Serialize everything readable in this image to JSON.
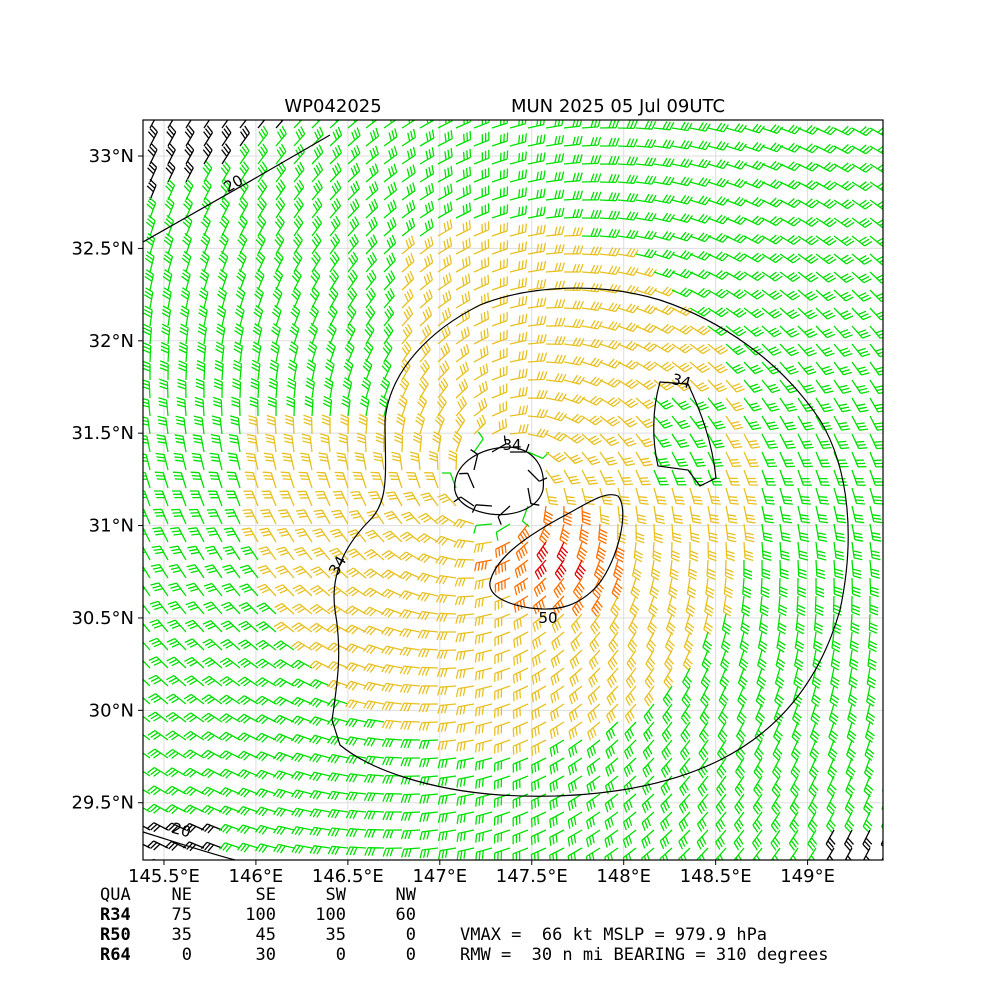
{
  "header": {
    "storm_id": "WP042025",
    "title": "MUN 2025 05 Jul 09UTC"
  },
  "map": {
    "xlim": [
      145.386,
      149.41
    ],
    "ylim": [
      29.19,
      33.195
    ],
    "grid": true,
    "xticks": [
      {
        "value": 145.5,
        "label": "145.5°E"
      },
      {
        "value": 146,
        "label": "146°E"
      },
      {
        "value": 146.5,
        "label": "146.5°E"
      },
      {
        "value": 147,
        "label": "147°E"
      },
      {
        "value": 147.5,
        "label": "147.5°E"
      },
      {
        "value": 148,
        "label": "148°E"
      },
      {
        "value": 148.5,
        "label": "148.5°E"
      },
      {
        "value": 149,
        "label": "149°E"
      }
    ],
    "yticks": [
      {
        "value": 29.5,
        "label": "29.5°N"
      },
      {
        "value": 30,
        "label": "30°N"
      },
      {
        "value": 30.5,
        "label": "30.5°N"
      },
      {
        "value": 31,
        "label": "31°N"
      },
      {
        "value": 31.5,
        "label": "31.5°N"
      },
      {
        "value": 32,
        "label": "32°N"
      },
      {
        "value": 32.5,
        "label": "32.5°N"
      },
      {
        "value": 33,
        "label": "33°N"
      }
    ],
    "contour_labels": [
      "34",
      "34",
      "34",
      "50",
      "20",
      "20"
    ]
  },
  "table": {
    "header": [
      "QUA",
      "NE",
      "SE",
      "SW",
      "NW"
    ],
    "rows": [
      [
        "R34",
        75,
        100,
        100,
        60
      ],
      [
        "R50",
        35,
        45,
        35,
        0
      ],
      [
        "R64",
        0,
        30,
        0,
        0
      ]
    ]
  },
  "stats": [
    "VMAX =  66 kt MSLP = 979.9 hPa",
    "RMW =  30 n mi BEARING = 310 degrees"
  ]
}
